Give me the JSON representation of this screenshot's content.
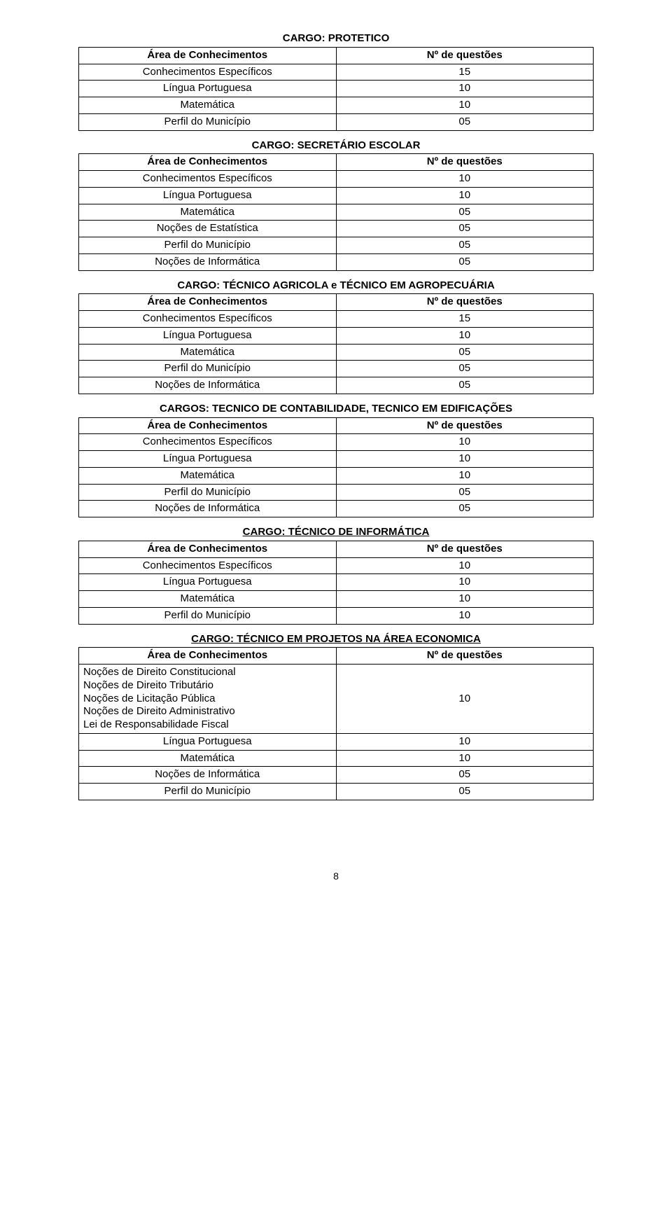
{
  "colors": {
    "text": "#000000",
    "border": "#000000",
    "background": "#ffffff"
  },
  "typography": {
    "font_family": "Arial",
    "base_size_pt": 11,
    "title_weight": "bold"
  },
  "tables": {
    "header": {
      "area": "Área de Conhecimentos",
      "nq": "Nº de questões"
    },
    "protetico": {
      "title": "CARGO: PROTETICO",
      "rows": [
        {
          "a": "Conhecimentos Específicos",
          "b": "15"
        },
        {
          "a": "Língua Portuguesa",
          "b": "10"
        },
        {
          "a": "Matemática",
          "b": "10"
        },
        {
          "a": "Perfil do Município",
          "b": "05"
        }
      ]
    },
    "secretario": {
      "title": "CARGO: SECRETÁRIO ESCOLAR",
      "rows": [
        {
          "a": "Conhecimentos Específicos",
          "b": "10"
        },
        {
          "a": "Língua Portuguesa",
          "b": "10"
        },
        {
          "a": "Matemática",
          "b": "05"
        },
        {
          "a": "Noções de Estatística",
          "b": "05"
        },
        {
          "a": "Perfil do Município",
          "b": "05"
        },
        {
          "a": "Noções de Informática",
          "b": "05"
        }
      ]
    },
    "tecnico_agricola": {
      "title": "CARGO: TÉCNICO AGRICOLA e TÉCNICO EM AGROPECUÁRIA",
      "rows": [
        {
          "a": "Conhecimentos Específicos",
          "b": "15"
        },
        {
          "a": "Língua Portuguesa",
          "b": "10"
        },
        {
          "a": "Matemática",
          "b": "05"
        },
        {
          "a": "Perfil do Município",
          "b": "05"
        },
        {
          "a": "Noções de Informática",
          "b": "05"
        }
      ]
    },
    "tecnico_contab": {
      "title": "CARGOS: TECNICO DE CONTABILIDADE, TECNICO EM EDIFICAÇÕES",
      "rows": [
        {
          "a": "Conhecimentos Específicos",
          "b": "10"
        },
        {
          "a": "Língua Portuguesa",
          "b": "10"
        },
        {
          "a": "Matemática",
          "b": "10"
        },
        {
          "a": "Perfil do Município",
          "b": "05"
        },
        {
          "a": "Noções de Informática",
          "b": "05"
        }
      ]
    },
    "tecnico_informatica": {
      "title": "CARGO: TÉCNICO DE INFORMÁTICA",
      "rows": [
        {
          "a": "Conhecimentos Específicos",
          "b": "10"
        },
        {
          "a": "Língua Portuguesa",
          "b": "10"
        },
        {
          "a": "Matemática",
          "b": "10"
        },
        {
          "a": "Perfil do Município",
          "b": "10"
        }
      ]
    },
    "tecnico_projetos": {
      "title": "CARGO:  TÉCNICO EM PROJETOS NA ÁREA ECONOMICA",
      "multi_row": {
        "lines": [
          "Noções de Direito Constitucional",
          "Noções de Direito Tributário",
          "Noções de Licitação Pública",
          "Noções de Direito Administrativo",
          "Lei de Responsabilidade Fiscal"
        ],
        "b": "10"
      },
      "rows": [
        {
          "a": "Língua Portuguesa",
          "b": "10"
        },
        {
          "a": "Matemática",
          "b": "10"
        },
        {
          "a": "Noções de Informática",
          "b": "05"
        },
        {
          "a": "Perfil do Município",
          "b": "05"
        }
      ]
    }
  },
  "page_number": "8"
}
